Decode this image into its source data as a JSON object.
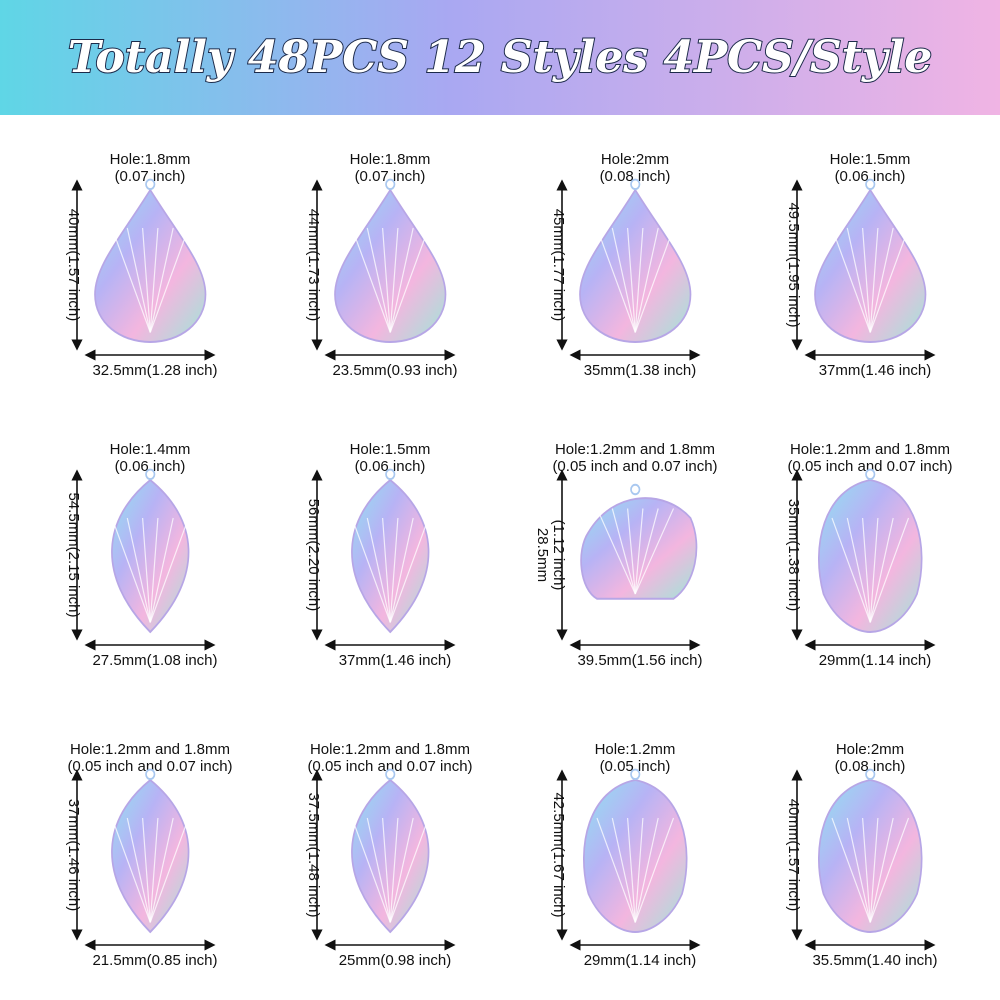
{
  "header": {
    "title": "Totally 48PCS 12 Styles 4PCS/Style"
  },
  "items": [
    {
      "hole": [
        "Hole:1.8mm",
        "(0.07 inch)"
      ],
      "height": [
        "40mm(1.57 inch)"
      ],
      "width": "32.5mm(1.28 inch)"
    },
    {
      "hole": [
        "Hole:1.8mm",
        "(0.07 inch)"
      ],
      "height": [
        "44mm(1.73 inch)"
      ],
      "width": "23.5mm(0.93 inch)"
    },
    {
      "hole": [
        "Hole:2mm",
        "(0.08 inch)"
      ],
      "height": [
        "45mm(1.77 inch)"
      ],
      "width": "35mm(1.38 inch)"
    },
    {
      "hole": [
        "Hole:1.5mm",
        "(0.06 inch)"
      ],
      "height": [
        "49.5mm(1.95 inch)"
      ],
      "width": "37mm(1.46 inch)"
    },
    {
      "hole": [
        "Hole:1.4mm",
        "(0.06 inch)"
      ],
      "height": [
        "54.5mm(2.15 inch)"
      ],
      "width": "27.5mm(1.08 inch)"
    },
    {
      "hole": [
        "Hole:1.5mm",
        "(0.06 inch)"
      ],
      "height": [
        "56mm(2.20 inch)"
      ],
      "width": "37mm(1.46 inch)"
    },
    {
      "hole": [
        "Hole:1.2mm and 1.8mm",
        "(0.05 inch and 0.07 inch)"
      ],
      "height": [
        "28.5mm",
        "(1.12 inch)"
      ],
      "width": "39.5mm(1.56 inch)"
    },
    {
      "hole": [
        "Hole:1.2mm and 1.8mm",
        "(0.05 inch and 0.07 inch)"
      ],
      "height": [
        "35mm(1.38 inch)"
      ],
      "width": "29mm(1.14 inch)"
    },
    {
      "hole": [
        "Hole:1.2mm and 1.8mm",
        "(0.05 inch and 0.07 inch)"
      ],
      "height": [
        "37mm(1.46 inch)"
      ],
      "width": "21.5mm(0.85 inch)"
    },
    {
      "hole": [
        "Hole:1.2mm and 1.8mm",
        "(0.05 inch and 0.07 inch)"
      ],
      "height": [
        "37.5mm(1.48 inch)"
      ],
      "width": "25mm(0.98 inch)"
    },
    {
      "hole": [
        "Hole:1.2mm",
        "(0.05 inch)"
      ],
      "height": [
        "42.5mm(1.67 inch)"
      ],
      "width": "29mm(1.14 inch)"
    },
    {
      "hole": [
        "Hole:2mm",
        "(0.08 inch)"
      ],
      "height": [
        "40mm(1.57 inch)"
      ],
      "width": "35.5mm(1.40 inch)"
    }
  ]
}
